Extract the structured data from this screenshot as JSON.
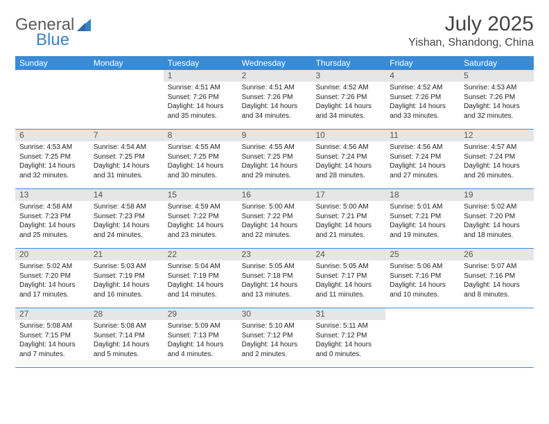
{
  "logo": {
    "text_a": "General",
    "text_b": "Blue"
  },
  "title": "July 2025",
  "location": "Yishan, Shandong, China",
  "colors": {
    "header_bar": "#3b8bd4",
    "daynum_bg": "#e6e6e6",
    "border": "#3b8bd4",
    "logo_gray": "#5a5a5a",
    "logo_blue": "#3b7fc4"
  },
  "days_of_week": [
    "Sunday",
    "Monday",
    "Tuesday",
    "Wednesday",
    "Thursday",
    "Friday",
    "Saturday"
  ],
  "weeks": [
    [
      {
        "n": "",
        "empty": true
      },
      {
        "n": "",
        "empty": true
      },
      {
        "n": "1",
        "sr": "4:51 AM",
        "ss": "7:26 PM",
        "dl": "14 hours and 35 minutes."
      },
      {
        "n": "2",
        "sr": "4:51 AM",
        "ss": "7:26 PM",
        "dl": "14 hours and 34 minutes."
      },
      {
        "n": "3",
        "sr": "4:52 AM",
        "ss": "7:26 PM",
        "dl": "14 hours and 34 minutes."
      },
      {
        "n": "4",
        "sr": "4:52 AM",
        "ss": "7:26 PM",
        "dl": "14 hours and 33 minutes."
      },
      {
        "n": "5",
        "sr": "4:53 AM",
        "ss": "7:26 PM",
        "dl": "14 hours and 32 minutes."
      }
    ],
    [
      {
        "n": "6",
        "sr": "4:53 AM",
        "ss": "7:25 PM",
        "dl": "14 hours and 32 minutes."
      },
      {
        "n": "7",
        "sr": "4:54 AM",
        "ss": "7:25 PM",
        "dl": "14 hours and 31 minutes."
      },
      {
        "n": "8",
        "sr": "4:55 AM",
        "ss": "7:25 PM",
        "dl": "14 hours and 30 minutes."
      },
      {
        "n": "9",
        "sr": "4:55 AM",
        "ss": "7:25 PM",
        "dl": "14 hours and 29 minutes."
      },
      {
        "n": "10",
        "sr": "4:56 AM",
        "ss": "7:24 PM",
        "dl": "14 hours and 28 minutes."
      },
      {
        "n": "11",
        "sr": "4:56 AM",
        "ss": "7:24 PM",
        "dl": "14 hours and 27 minutes."
      },
      {
        "n": "12",
        "sr": "4:57 AM",
        "ss": "7:24 PM",
        "dl": "14 hours and 26 minutes."
      }
    ],
    [
      {
        "n": "13",
        "sr": "4:58 AM",
        "ss": "7:23 PM",
        "dl": "14 hours and 25 minutes."
      },
      {
        "n": "14",
        "sr": "4:58 AM",
        "ss": "7:23 PM",
        "dl": "14 hours and 24 minutes."
      },
      {
        "n": "15",
        "sr": "4:59 AM",
        "ss": "7:22 PM",
        "dl": "14 hours and 23 minutes."
      },
      {
        "n": "16",
        "sr": "5:00 AM",
        "ss": "7:22 PM",
        "dl": "14 hours and 22 minutes."
      },
      {
        "n": "17",
        "sr": "5:00 AM",
        "ss": "7:21 PM",
        "dl": "14 hours and 21 minutes."
      },
      {
        "n": "18",
        "sr": "5:01 AM",
        "ss": "7:21 PM",
        "dl": "14 hours and 19 minutes."
      },
      {
        "n": "19",
        "sr": "5:02 AM",
        "ss": "7:20 PM",
        "dl": "14 hours and 18 minutes."
      }
    ],
    [
      {
        "n": "20",
        "sr": "5:02 AM",
        "ss": "7:20 PM",
        "dl": "14 hours and 17 minutes."
      },
      {
        "n": "21",
        "sr": "5:03 AM",
        "ss": "7:19 PM",
        "dl": "14 hours and 16 minutes."
      },
      {
        "n": "22",
        "sr": "5:04 AM",
        "ss": "7:19 PM",
        "dl": "14 hours and 14 minutes."
      },
      {
        "n": "23",
        "sr": "5:05 AM",
        "ss": "7:18 PM",
        "dl": "14 hours and 13 minutes."
      },
      {
        "n": "24",
        "sr": "5:05 AM",
        "ss": "7:17 PM",
        "dl": "14 hours and 11 minutes."
      },
      {
        "n": "25",
        "sr": "5:06 AM",
        "ss": "7:16 PM",
        "dl": "14 hours and 10 minutes."
      },
      {
        "n": "26",
        "sr": "5:07 AM",
        "ss": "7:16 PM",
        "dl": "14 hours and 8 minutes."
      }
    ],
    [
      {
        "n": "27",
        "sr": "5:08 AM",
        "ss": "7:15 PM",
        "dl": "14 hours and 7 minutes."
      },
      {
        "n": "28",
        "sr": "5:08 AM",
        "ss": "7:14 PM",
        "dl": "14 hours and 5 minutes."
      },
      {
        "n": "29",
        "sr": "5:09 AM",
        "ss": "7:13 PM",
        "dl": "14 hours and 4 minutes."
      },
      {
        "n": "30",
        "sr": "5:10 AM",
        "ss": "7:12 PM",
        "dl": "14 hours and 2 minutes."
      },
      {
        "n": "31",
        "sr": "5:11 AM",
        "ss": "7:12 PM",
        "dl": "14 hours and 0 minutes."
      },
      {
        "n": "",
        "empty": true
      },
      {
        "n": "",
        "empty": true
      }
    ]
  ],
  "labels": {
    "sunrise": "Sunrise: ",
    "sunset": "Sunset: ",
    "daylight": "Daylight: "
  }
}
